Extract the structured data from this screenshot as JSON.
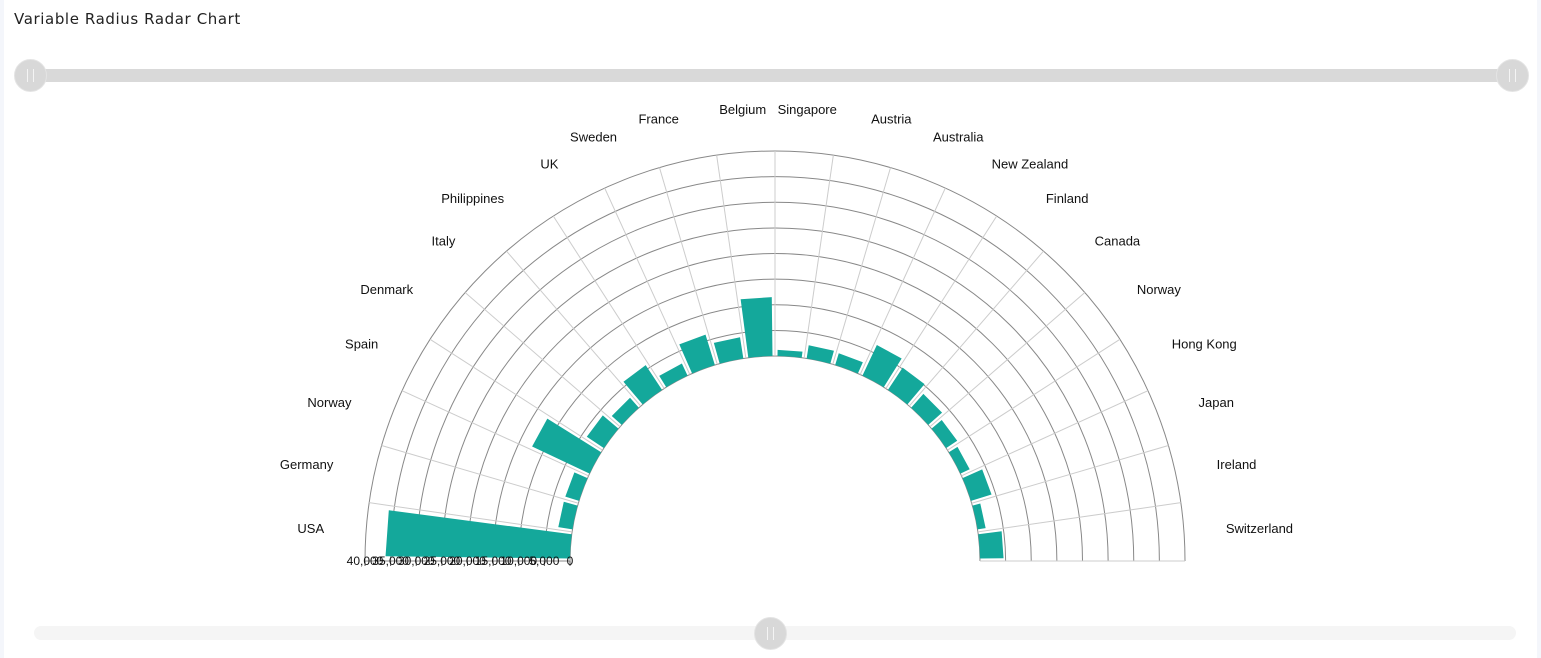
{
  "title": "Variable Radius Radar Chart",
  "sliders": {
    "top_range": {
      "start_fraction": 0,
      "end_fraction": 1
    },
    "bottom_value_fraction": 0.5
  },
  "colors": {
    "bar": "#14a89b",
    "grid_ring": "#888888",
    "grid_spoke": "#cccccc",
    "slider_track": "#d9d9d9",
    "slider_handle": "#d8d8d8"
  },
  "chart_data": {
    "type": "bar",
    "subtype": "variable-radius-polar-half",
    "categories": [
      "USA",
      "Germany",
      "Norway",
      "Spain",
      "Denmark",
      "Italy",
      "Philippines",
      "UK",
      "Sweden",
      "France",
      "Belgium",
      "Singapore",
      "Austria",
      "Australia",
      "New Zealand",
      "Finland",
      "Canada",
      "Norway",
      "Hong Kong",
      "Japan",
      "Ireland",
      "Switzerland"
    ],
    "values": [
      36000,
      2800,
      2800,
      12400,
      4000,
      2600,
      5800,
      2600,
      6200,
      4200,
      11500,
      1200,
      2600,
      2400,
      6600,
      5200,
      3600,
      2600,
      2000,
      4200,
      1600,
      4600
    ],
    "tick_labels": [
      "40,000",
      "35,000",
      "30,000",
      "25,000",
      "20,000",
      "15,000",
      "10,000",
      "5,000",
      "0"
    ],
    "ylim": [
      0,
      40000
    ],
    "grid": true
  }
}
